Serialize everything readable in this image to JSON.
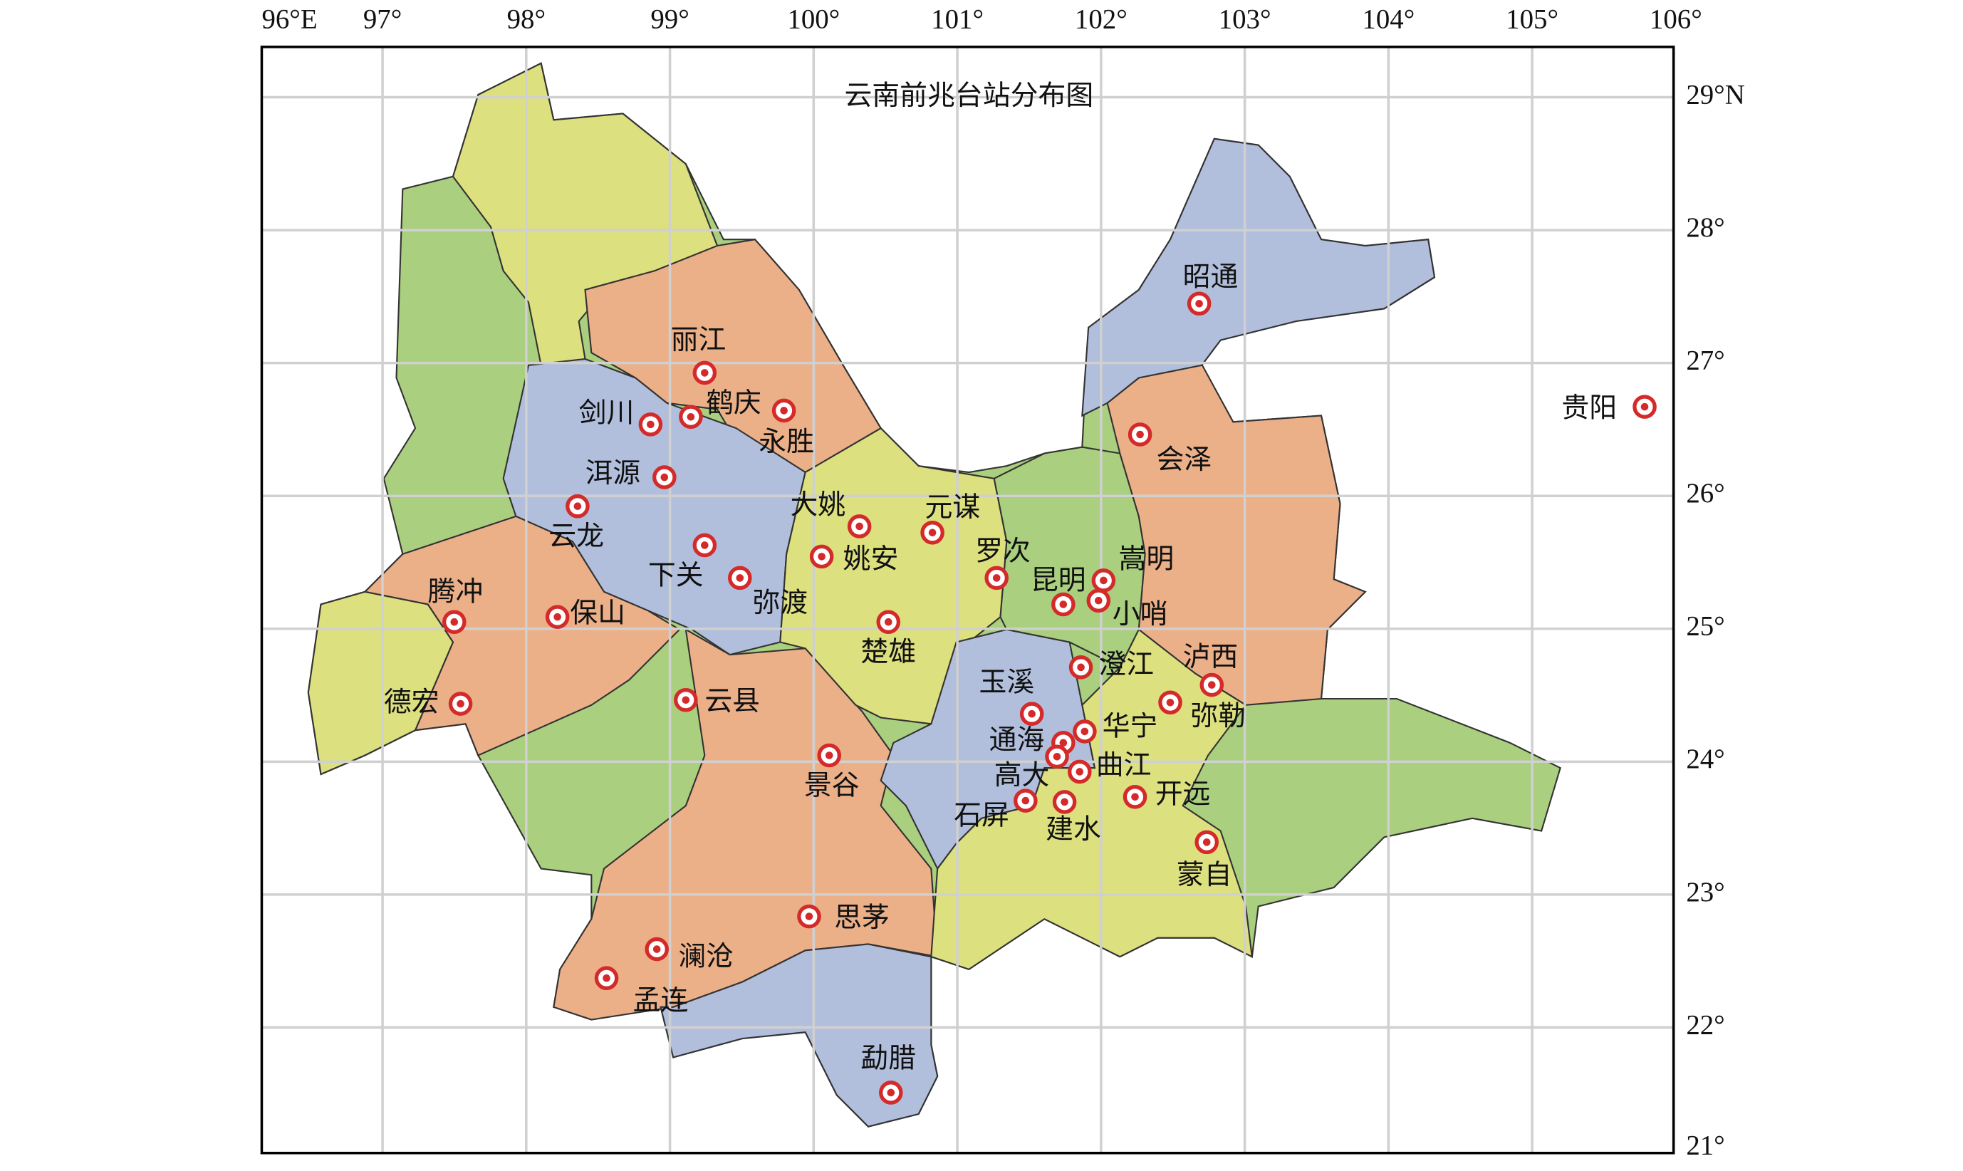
{
  "title": "云南前兆台站分布图",
  "lon_ticks": [
    {
      "value": 96,
      "label": "96°E"
    },
    {
      "value": 97,
      "label": "97°"
    },
    {
      "value": 98,
      "label": "98°"
    },
    {
      "value": 99,
      "label": "99°"
    },
    {
      "value": 100,
      "label": "100°"
    },
    {
      "value": 101,
      "label": "101°"
    },
    {
      "value": 102,
      "label": "102°"
    },
    {
      "value": 103,
      "label": "103°"
    },
    {
      "value": 104,
      "label": "104°"
    },
    {
      "value": 105,
      "label": "105°"
    },
    {
      "value": 106,
      "label": "106°"
    }
  ],
  "lat_ticks": [
    {
      "value": 29,
      "label": "29°N"
    },
    {
      "value": 28,
      "label": "28°"
    },
    {
      "value": 27,
      "label": "27°"
    },
    {
      "value": 26,
      "label": "26°"
    },
    {
      "value": 25,
      "label": "25°"
    },
    {
      "value": 24,
      "label": "24°"
    },
    {
      "value": 23,
      "label": "23°"
    },
    {
      "value": 22,
      "label": "22°"
    },
    {
      "value": 21,
      "label": "21°"
    }
  ],
  "stations": [
    "丽江",
    "剑川",
    "鹤庆",
    "永胜",
    "洱源",
    "云龙",
    "大姚",
    "元谋",
    "下关",
    "弥渡",
    "姚安",
    "罗次",
    "嵩明",
    "昆明",
    "小哨",
    "腾冲",
    "保山",
    "楚雄",
    "澄江",
    "泸西",
    "玉溪",
    "德宏",
    "云县",
    "弥勒",
    "华宁",
    "通海",
    "景谷",
    "高大",
    "曲江",
    "开远",
    "石屏",
    "建水",
    "蒙自",
    "思茅",
    "澜沧",
    "孟连",
    "勐腊",
    "昭通",
    "会泽",
    "贵阳"
  ]
}
